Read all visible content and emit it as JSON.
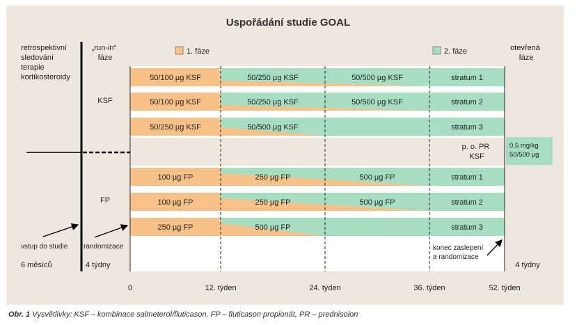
{
  "title": "Uspořádání studie GOAL",
  "colors": {
    "panel_bg": "#EDE7DD",
    "phase1": "#F8C187",
    "phase2": "#A7DEC2",
    "line": "#000000",
    "white": "#FFFFFF"
  },
  "headers": {
    "retro": [
      "retrospektivní",
      "sledování",
      "terapie",
      "kortikosteroidy"
    ],
    "runin": [
      "„run-in“",
      "fáze"
    ],
    "open": [
      "otevřená",
      "fáze"
    ]
  },
  "legend": {
    "phase1": "1. fáze",
    "phase2": "2. fáze"
  },
  "groups": {
    "ksf": "KSF",
    "fp": "FP"
  },
  "ksf_rows": [
    {
      "segments": [
        "50/100 µg KSF",
        "50/250 µg KSF",
        "50/500 µg KSF"
      ],
      "stratum": "stratum 1"
    },
    {
      "segments": [
        "50/100 µg KSF",
        "50/250 µg KSF",
        "50/500 µg KSF"
      ],
      "stratum": "stratum 2"
    },
    {
      "segments": [
        "50/250 µg KSF",
        "50/500 µg KSF"
      ],
      "stratum": "stratum 3"
    }
  ],
  "po_pr": {
    "line1": "p. o. PR",
    "line2": "KSF",
    "box_line1": "0,5 mg/kg",
    "box_line2": "50/500 µg"
  },
  "fp_rows": [
    {
      "segments": [
        "100 µg FP",
        "250 µg FP",
        "500 µg FP"
      ],
      "stratum": "stratum 1"
    },
    {
      "segments": [
        "100 µg FP",
        "250 µg FP",
        "500 µg FP"
      ],
      "stratum": "stratum 2"
    },
    {
      "segments": [
        "250 µg FP",
        "500 µg FP"
      ],
      "stratum": "stratum 3"
    }
  ],
  "annotations": {
    "entry": "vstup do studie",
    "randomization": "randomizace",
    "unblinding": [
      "konec zaslepení",
      "a randomizace"
    ]
  },
  "durations": {
    "retro": "6 měsíců",
    "runin": "4 týdny",
    "open": "4 týdny"
  },
  "timeline_ticks": [
    "0",
    "12. týden",
    "24. týden",
    "36. týden",
    "52. týden"
  ],
  "caption": {
    "label": "Obr. 1",
    "text": "Vysvětlivky: KSF – kombinace salmeterol/fluticason, FP – fluticason propionát, PR – prednisolon"
  }
}
